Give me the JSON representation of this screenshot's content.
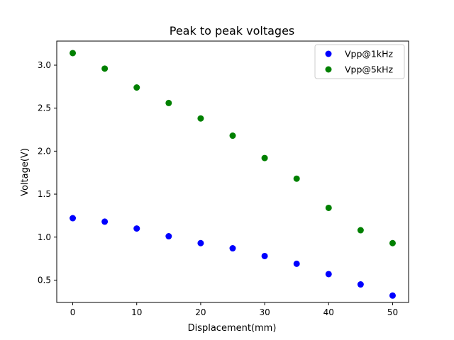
{
  "chart_data": {
    "type": "scatter",
    "title": "Peak to peak voltages",
    "xlabel": "Displacement(mm)",
    "ylabel": "Voltage(V)",
    "xlim": [
      -2.5,
      52.5
    ],
    "ylim": [
      0.24,
      3.28
    ],
    "xticks": [
      0,
      10,
      20,
      30,
      40,
      50
    ],
    "yticks": [
      0.5,
      1.0,
      1.5,
      2.0,
      2.5,
      3.0
    ],
    "xtick_labels": [
      "0",
      "10",
      "20",
      "30",
      "40",
      "50"
    ],
    "ytick_labels": [
      "0.5",
      "1.0",
      "1.5",
      "2.0",
      "2.5",
      "3.0"
    ],
    "grid": false,
    "legend_position": "top-right",
    "x": [
      0,
      5,
      10,
      15,
      20,
      25,
      30,
      35,
      40,
      45,
      50
    ],
    "series": [
      {
        "name": "Vpp@1kHz",
        "color": "#0000ff",
        "marker": "circle",
        "values": [
          1.22,
          1.18,
          1.1,
          1.01,
          0.93,
          0.87,
          0.78,
          0.69,
          0.57,
          0.45,
          0.32
        ]
      },
      {
        "name": "Vpp@5kHz",
        "color": "#008000",
        "marker": "circle",
        "values": [
          3.14,
          2.96,
          2.74,
          2.56,
          2.38,
          2.18,
          1.92,
          1.68,
          1.34,
          1.08,
          0.93
        ]
      }
    ]
  }
}
